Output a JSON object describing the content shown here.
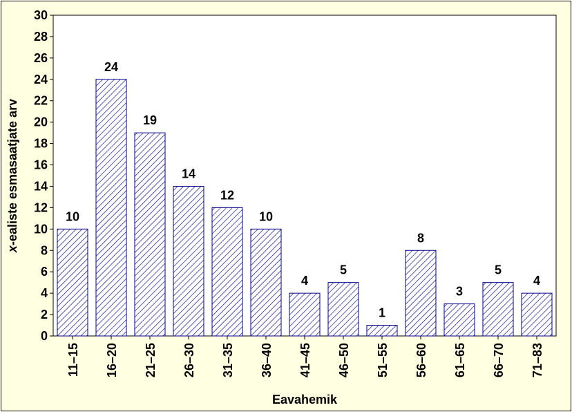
{
  "chart_data": {
    "type": "bar",
    "categories": [
      "11–15",
      "16–20",
      "21–25",
      "26–30",
      "31–35",
      "36–40",
      "41–45",
      "46–50",
      "51–55",
      "56–60",
      "61–65",
      "66–70",
      "71–83"
    ],
    "values": [
      10,
      24,
      19,
      14,
      12,
      10,
      4,
      5,
      1,
      8,
      3,
      5,
      4
    ],
    "xlabel": "Eavahemik",
    "ylabel_italic": "x",
    "ylabel": "-ealiste esmasaatjate arv",
    "ylim": [
      0,
      30
    ],
    "yticks": [
      0,
      2,
      4,
      6,
      8,
      10,
      12,
      14,
      16,
      18,
      20,
      22,
      24,
      26,
      28,
      30
    ],
    "data_labels": true,
    "grid": false,
    "colors": {
      "background": "#ffffe1",
      "plot_background": "#ffffff",
      "bar_stroke": "#00008b",
      "hatch": "#00008b"
    }
  }
}
